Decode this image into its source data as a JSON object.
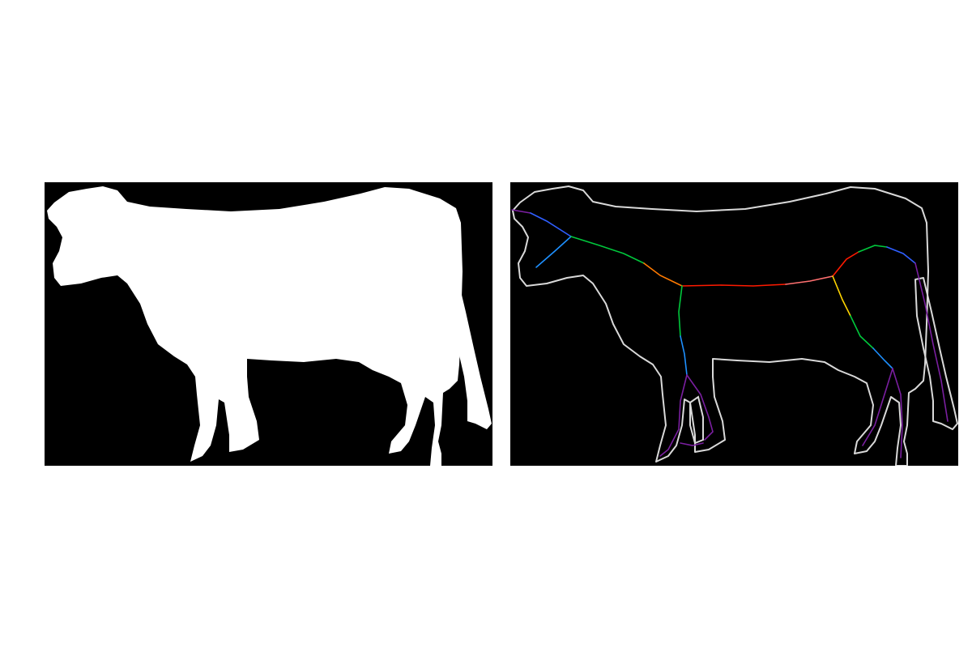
{
  "figure": {
    "panels": [
      {
        "id": "silhouette",
        "description_shown": "binary mask",
        "background_color": "#000000",
        "shape_color": "#ffffff",
        "subject_icon": "cow-silhouette"
      },
      {
        "id": "skeleton",
        "background_color": "#000000",
        "contour_color": "#d9d9d9",
        "subject_icon": "cow-skeleton",
        "segment_colors": [
          "#7a1fa0",
          "#2f5fff",
          "#1e90ff",
          "#00c83c",
          "#ffd400",
          "#ff7a00",
          "#ff1a00",
          "#ff7070"
        ]
      }
    ]
  }
}
